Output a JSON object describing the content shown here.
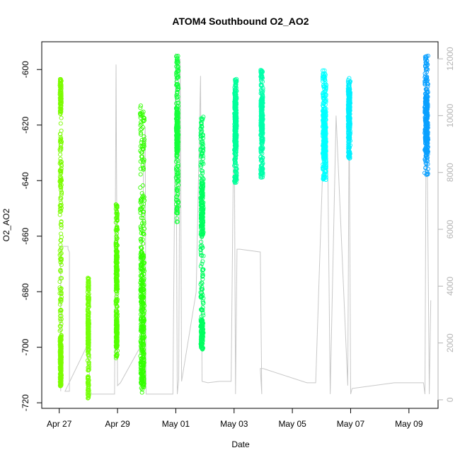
{
  "chart_data": {
    "type": "scatter",
    "title": "ATOM4 Southbound O2_AO2",
    "xlabel": "Date",
    "ylabel": "O2_AO2",
    "x_ticks": [
      "Apr 27",
      "Apr 29",
      "May 01",
      "May 03",
      "May 05",
      "May 07",
      "May 09"
    ],
    "x_tick_days": [
      0,
      2,
      4,
      6,
      8,
      10,
      12
    ],
    "xlim_days": [
      -0.6,
      13.0
    ],
    "ylim": [
      -722,
      -590
    ],
    "y_ticks": [
      -720,
      -700,
      -680,
      -660,
      -640,
      -620,
      -600
    ],
    "y2lim": [
      -300,
      12600
    ],
    "y2_ticks": [
      0,
      2000,
      4000,
      6000,
      8000,
      10000,
      12000
    ],
    "secondary_line_color": "#c8c8c8",
    "series": [
      {
        "x": 0.05,
        "ymin": -715,
        "ymax": -603,
        "color": "#7cfc00",
        "pad": 0.06,
        "bands": [
          [
            -616,
            -603,
            0.55
          ],
          [
            -708,
            -696,
            0.95
          ],
          [
            -714,
            -700,
            0.8
          ]
        ]
      },
      {
        "x": 1.0,
        "ymin": -719,
        "ymax": -675,
        "color": "#76ff0a",
        "pad": 0.05,
        "bands": [
          [
            -700,
            -690,
            0.7
          ]
        ]
      },
      {
        "x": 1.97,
        "ymin": -704,
        "ymax": -648,
        "color": "#52ff00",
        "pad": 0.06,
        "bands": [
          [
            -700,
            -690,
            0.7
          ],
          [
            -680,
            -665,
            0.6
          ]
        ]
      },
      {
        "x": 2.85,
        "ymin": -717,
        "ymax": -613,
        "color": "#33ff00",
        "pad": 0.15,
        "bands": [
          [
            -700,
            -665,
            0.9
          ],
          [
            -714,
            -700,
            0.5
          ]
        ]
      },
      {
        "x": 4.05,
        "ymin": -655,
        "ymax": -595,
        "color": "#14ff3a",
        "pad": 0.08,
        "bands": [
          [
            -630,
            -615,
            0.8
          ]
        ]
      },
      {
        "x": 4.9,
        "ymin": -701,
        "ymax": -617,
        "color": "#00ff60",
        "pad": 0.1,
        "bands": [
          [
            -660,
            -640,
            0.7
          ],
          [
            -700,
            -690,
            0.5
          ]
        ]
      },
      {
        "x": 6.05,
        "ymin": -641,
        "ymax": -603,
        "color": "#00ff9a",
        "pad": 0.08,
        "bands": [
          [
            -628,
            -610,
            0.9
          ]
        ]
      },
      {
        "x": 6.95,
        "ymin": -639,
        "ymax": -600,
        "color": "#00ffaa",
        "pad": 0.08,
        "bands": [
          [
            -625,
            -610,
            0.8
          ]
        ]
      },
      {
        "x": 9.1,
        "ymin": -640,
        "ymax": -600,
        "color": "#00ffff",
        "pad": 0.12,
        "bands": [
          [
            -632,
            -615,
            0.9
          ]
        ]
      },
      {
        "x": 9.95,
        "ymin": -632,
        "ymax": -603,
        "color": "#00f0ff",
        "pad": 0.08,
        "bands": [
          [
            -620,
            -608,
            0.7
          ]
        ]
      },
      {
        "x": 12.6,
        "ymin": -638,
        "ymax": -595,
        "color": "#0aa0ff",
        "pad": 0.12,
        "bands": [
          [
            -630,
            -610,
            0.9
          ]
        ]
      }
    ],
    "secondary_line": [
      [
        0.05,
        300
      ],
      [
        0.05,
        5400
      ],
      [
        0.3,
        5400
      ],
      [
        0.3,
        5300
      ],
      [
        0.35,
        5200
      ],
      [
        0.35,
        300
      ],
      [
        0.2,
        300
      ],
      [
        1.0,
        2000
      ],
      [
        1.05,
        600
      ],
      [
        1.05,
        200
      ],
      [
        1.9,
        200
      ],
      [
        1.95,
        11800
      ],
      [
        2.0,
        500
      ],
      [
        2.1,
        600
      ],
      [
        2.8,
        1900
      ],
      [
        2.9,
        8500
      ],
      [
        2.95,
        9600
      ],
      [
        2.98,
        200
      ],
      [
        3.9,
        200
      ],
      [
        4.0,
        12200
      ],
      [
        4.05,
        200
      ],
      [
        4.1,
        700
      ],
      [
        4.15,
        12000
      ],
      [
        4.2,
        650
      ],
      [
        4.7,
        3800
      ],
      [
        4.85,
        11400
      ],
      [
        4.9,
        650
      ],
      [
        5.1,
        600
      ],
      [
        5.5,
        650
      ],
      [
        5.9,
        650
      ],
      [
        6.0,
        10800
      ],
      [
        6.05,
        200
      ],
      [
        6.1,
        5300
      ],
      [
        6.2,
        5300
      ],
      [
        6.9,
        5200
      ],
      [
        6.95,
        200
      ],
      [
        6.9,
        1100
      ],
      [
        7.0,
        1100
      ],
      [
        8.5,
        600
      ],
      [
        8.8,
        600
      ],
      [
        9.1,
        10000
      ],
      [
        9.2,
        9900
      ],
      [
        9.3,
        200
      ],
      [
        9.5,
        10000
      ],
      [
        9.9,
        500
      ],
      [
        9.95,
        10200
      ],
      [
        10.0,
        200
      ],
      [
        10.05,
        400
      ],
      [
        11.5,
        600
      ],
      [
        12.5,
        600
      ],
      [
        12.55,
        200
      ],
      [
        12.6,
        12000
      ],
      [
        12.7,
        200
      ],
      [
        12.75,
        3500
      ]
    ]
  }
}
